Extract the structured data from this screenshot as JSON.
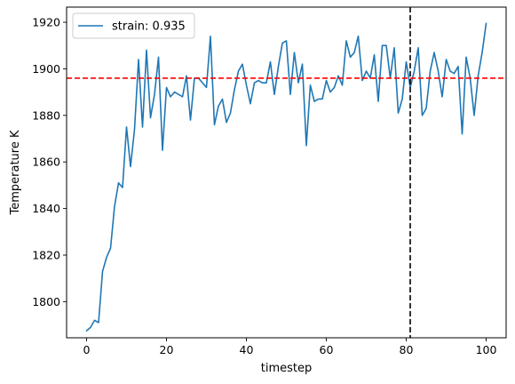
{
  "chart_data": {
    "type": "line",
    "title": "",
    "xlabel": "timestep",
    "ylabel": "Temperature K",
    "xlim": [
      -5,
      105
    ],
    "ylim": [
      1784.5,
      1926.5
    ],
    "xticks": [
      0,
      20,
      40,
      60,
      80,
      100
    ],
    "yticks": [
      1800,
      1820,
      1840,
      1860,
      1880,
      1900,
      1920
    ],
    "grid": false,
    "legend_position": "top-left",
    "series": [
      {
        "name": "strain: 0.935",
        "color": "#1f77b4",
        "x": [
          0,
          1,
          2,
          3,
          4,
          5,
          6,
          7,
          8,
          9,
          10,
          11,
          12,
          13,
          14,
          15,
          16,
          17,
          18,
          19,
          20,
          21,
          22,
          23,
          24,
          25,
          26,
          27,
          28,
          29,
          30,
          31,
          32,
          33,
          34,
          35,
          36,
          37,
          38,
          39,
          40,
          41,
          42,
          43,
          44,
          45,
          46,
          47,
          48,
          49,
          50,
          51,
          52,
          53,
          54,
          55,
          56,
          57,
          58,
          59,
          60,
          61,
          62,
          63,
          64,
          65,
          66,
          67,
          68,
          69,
          70,
          71,
          72,
          73,
          74,
          75,
          76,
          77,
          78,
          79,
          80,
          81,
          82,
          83,
          84,
          85,
          86,
          87,
          88,
          89,
          90,
          91,
          92,
          93,
          94,
          95,
          96,
          97,
          98,
          99,
          100
        ],
        "values": [
          1787.5,
          1789,
          1792,
          1791,
          1813,
          1819,
          1823,
          1841,
          1851,
          1849,
          1875,
          1858,
          1874,
          1904,
          1875,
          1908,
          1879,
          1889,
          1905,
          1865,
          1892,
          1888,
          1890,
          1889,
          1888,
          1897,
          1878,
          1896,
          1896,
          1894,
          1892,
          1914,
          1876,
          1884,
          1887,
          1877,
          1881,
          1891,
          1899,
          1902,
          1893,
          1885,
          1894,
          1895,
          1894,
          1894,
          1903,
          1889,
          1901,
          1911,
          1912,
          1889,
          1907,
          1894,
          1902,
          1867,
          1893,
          1886,
          1887,
          1887,
          1895,
          1890,
          1892,
          1897,
          1893,
          1912,
          1905,
          1907,
          1914,
          1895,
          1899,
          1896,
          1906,
          1886,
          1910,
          1910,
          1896,
          1909,
          1881,
          1887,
          1903,
          1892,
          1899,
          1909,
          1880,
          1883,
          1899,
          1907,
          1899,
          1888,
          1904,
          1899,
          1898,
          1901,
          1872,
          1905,
          1896,
          1880,
          1897,
          1907,
          1919.5
        ]
      }
    ],
    "reference_lines": [
      {
        "orientation": "horizontal",
        "value": 1896,
        "color": "#ff0000",
        "style": "dashed"
      },
      {
        "orientation": "vertical",
        "value": 81,
        "color": "#000000",
        "style": "dashed"
      }
    ]
  }
}
